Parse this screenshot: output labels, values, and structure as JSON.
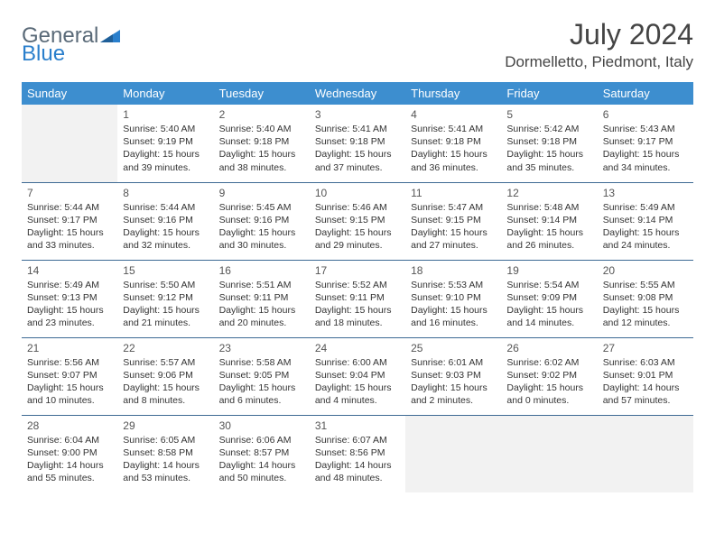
{
  "brand": {
    "part1": "General",
    "part2": "Blue"
  },
  "title": "July 2024",
  "location": "Dormelletto, Piedmont, Italy",
  "colors": {
    "header_bg": "#3d8ecf",
    "header_text": "#ffffff",
    "row_border": "#3d6a94",
    "empty_bg": "#f2f2f2",
    "logo_gray": "#5a6a78",
    "logo_blue": "#2a7fcc"
  },
  "weekdays": [
    "Sunday",
    "Monday",
    "Tuesday",
    "Wednesday",
    "Thursday",
    "Friday",
    "Saturday"
  ],
  "weeks": [
    [
      {
        "empty": true
      },
      {
        "num": "1",
        "sunrise": "5:40 AM",
        "sunset": "9:19 PM",
        "daylight": "15 hours and 39 minutes."
      },
      {
        "num": "2",
        "sunrise": "5:40 AM",
        "sunset": "9:18 PM",
        "daylight": "15 hours and 38 minutes."
      },
      {
        "num": "3",
        "sunrise": "5:41 AM",
        "sunset": "9:18 PM",
        "daylight": "15 hours and 37 minutes."
      },
      {
        "num": "4",
        "sunrise": "5:41 AM",
        "sunset": "9:18 PM",
        "daylight": "15 hours and 36 minutes."
      },
      {
        "num": "5",
        "sunrise": "5:42 AM",
        "sunset": "9:18 PM",
        "daylight": "15 hours and 35 minutes."
      },
      {
        "num": "6",
        "sunrise": "5:43 AM",
        "sunset": "9:17 PM",
        "daylight": "15 hours and 34 minutes."
      }
    ],
    [
      {
        "num": "7",
        "sunrise": "5:44 AM",
        "sunset": "9:17 PM",
        "daylight": "15 hours and 33 minutes."
      },
      {
        "num": "8",
        "sunrise": "5:44 AM",
        "sunset": "9:16 PM",
        "daylight": "15 hours and 32 minutes."
      },
      {
        "num": "9",
        "sunrise": "5:45 AM",
        "sunset": "9:16 PM",
        "daylight": "15 hours and 30 minutes."
      },
      {
        "num": "10",
        "sunrise": "5:46 AM",
        "sunset": "9:15 PM",
        "daylight": "15 hours and 29 minutes."
      },
      {
        "num": "11",
        "sunrise": "5:47 AM",
        "sunset": "9:15 PM",
        "daylight": "15 hours and 27 minutes."
      },
      {
        "num": "12",
        "sunrise": "5:48 AM",
        "sunset": "9:14 PM",
        "daylight": "15 hours and 26 minutes."
      },
      {
        "num": "13",
        "sunrise": "5:49 AM",
        "sunset": "9:14 PM",
        "daylight": "15 hours and 24 minutes."
      }
    ],
    [
      {
        "num": "14",
        "sunrise": "5:49 AM",
        "sunset": "9:13 PM",
        "daylight": "15 hours and 23 minutes."
      },
      {
        "num": "15",
        "sunrise": "5:50 AM",
        "sunset": "9:12 PM",
        "daylight": "15 hours and 21 minutes."
      },
      {
        "num": "16",
        "sunrise": "5:51 AM",
        "sunset": "9:11 PM",
        "daylight": "15 hours and 20 minutes."
      },
      {
        "num": "17",
        "sunrise": "5:52 AM",
        "sunset": "9:11 PM",
        "daylight": "15 hours and 18 minutes."
      },
      {
        "num": "18",
        "sunrise": "5:53 AM",
        "sunset": "9:10 PM",
        "daylight": "15 hours and 16 minutes."
      },
      {
        "num": "19",
        "sunrise": "5:54 AM",
        "sunset": "9:09 PM",
        "daylight": "15 hours and 14 minutes."
      },
      {
        "num": "20",
        "sunrise": "5:55 AM",
        "sunset": "9:08 PM",
        "daylight": "15 hours and 12 minutes."
      }
    ],
    [
      {
        "num": "21",
        "sunrise": "5:56 AM",
        "sunset": "9:07 PM",
        "daylight": "15 hours and 10 minutes."
      },
      {
        "num": "22",
        "sunrise": "5:57 AM",
        "sunset": "9:06 PM",
        "daylight": "15 hours and 8 minutes."
      },
      {
        "num": "23",
        "sunrise": "5:58 AM",
        "sunset": "9:05 PM",
        "daylight": "15 hours and 6 minutes."
      },
      {
        "num": "24",
        "sunrise": "6:00 AM",
        "sunset": "9:04 PM",
        "daylight": "15 hours and 4 minutes."
      },
      {
        "num": "25",
        "sunrise": "6:01 AM",
        "sunset": "9:03 PM",
        "daylight": "15 hours and 2 minutes."
      },
      {
        "num": "26",
        "sunrise": "6:02 AM",
        "sunset": "9:02 PM",
        "daylight": "15 hours and 0 minutes."
      },
      {
        "num": "27",
        "sunrise": "6:03 AM",
        "sunset": "9:01 PM",
        "daylight": "14 hours and 57 minutes."
      }
    ],
    [
      {
        "num": "28",
        "sunrise": "6:04 AM",
        "sunset": "9:00 PM",
        "daylight": "14 hours and 55 minutes."
      },
      {
        "num": "29",
        "sunrise": "6:05 AM",
        "sunset": "8:58 PM",
        "daylight": "14 hours and 53 minutes."
      },
      {
        "num": "30",
        "sunrise": "6:06 AM",
        "sunset": "8:57 PM",
        "daylight": "14 hours and 50 minutes."
      },
      {
        "num": "31",
        "sunrise": "6:07 AM",
        "sunset": "8:56 PM",
        "daylight": "14 hours and 48 minutes."
      },
      {
        "empty": true
      },
      {
        "empty": true
      },
      {
        "empty": true
      }
    ]
  ],
  "labels": {
    "sunrise": "Sunrise:",
    "sunset": "Sunset:",
    "daylight": "Daylight:"
  }
}
